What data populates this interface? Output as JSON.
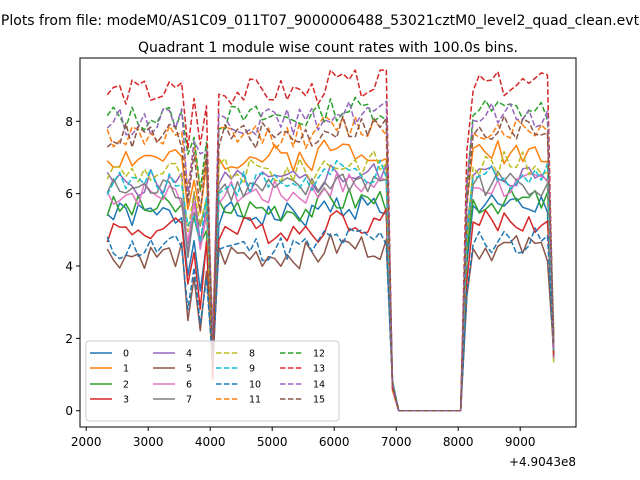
{
  "suptitle": "Plots from file: modeM0/AS1C09_011T07_9000006488_53021cztM0_level2_quad_clean.evt",
  "chart_data": {
    "type": "line",
    "title": "Quadrant 1 module wise count rates with 100.0s bins.",
    "xlabel": "",
    "ylabel": "",
    "x_offset_label": "+4.9043e8",
    "xlim": [
      1900,
      9900
    ],
    "ylim": [
      -0.45,
      9.75
    ],
    "xticks": [
      2000,
      3000,
      4000,
      5000,
      6000,
      7000,
      8000,
      9000
    ],
    "yticks": [
      0,
      2,
      4,
      6,
      8
    ],
    "grid": false,
    "legend_position": "lower-left",
    "legend_columns": 4,
    "x_start": 2340,
    "x_step": 100,
    "segments": [
      {
        "name": "on1",
        "start": 2340,
        "end": 3940
      },
      {
        "name": "dip",
        "start": 4040,
        "end": 4040
      },
      {
        "name": "on2",
        "start": 4140,
        "end": 6840
      },
      {
        "name": "tail",
        "start": 6940,
        "end": 7140
      },
      {
        "name": "off",
        "start": 7240,
        "end": 8040
      },
      {
        "name": "on3",
        "start": 8140,
        "end": 9540
      }
    ],
    "series": [
      {
        "name": "0",
        "color": "#1f77b4",
        "dash": "solid",
        "level": 5.4
      },
      {
        "name": "1",
        "color": "#ff7f0e",
        "dash": "solid",
        "level": 7.0
      },
      {
        "name": "2",
        "color": "#2ca02c",
        "dash": "solid",
        "level": 5.6
      },
      {
        "name": "3",
        "color": "#d62728",
        "dash": "solid",
        "level": 5.0
      },
      {
        "name": "4",
        "color": "#9467bd",
        "dash": "solid",
        "level": 6.3
      },
      {
        "name": "5",
        "color": "#8c564b",
        "dash": "solid",
        "level": 4.3
      },
      {
        "name": "6",
        "color": "#e377c2",
        "dash": "solid",
        "level": 6.0
      },
      {
        "name": "7",
        "color": "#7f7f7f",
        "dash": "solid",
        "level": 6.1
      },
      {
        "name": "8",
        "color": "#bcbd22",
        "dash": "dashed",
        "level": 6.6
      },
      {
        "name": "9",
        "color": "#17becf",
        "dash": "dashed",
        "level": 6.3
      },
      {
        "name": "10",
        "color": "#1f77b4",
        "dash": "dashed",
        "level": 4.5
      },
      {
        "name": "11",
        "color": "#ff7f0e",
        "dash": "dashed",
        "level": 7.6
      },
      {
        "name": "12",
        "color": "#2ca02c",
        "dash": "dashed",
        "level": 8.1
      },
      {
        "name": "13",
        "color": "#d62728",
        "dash": "dashed",
        "level": 8.8
      },
      {
        "name": "14",
        "color": "#9467bd",
        "dash": "dashed",
        "level": 8.0
      },
      {
        "name": "15",
        "color": "#8c564b",
        "dash": "dashed",
        "level": 7.6
      }
    ]
  }
}
